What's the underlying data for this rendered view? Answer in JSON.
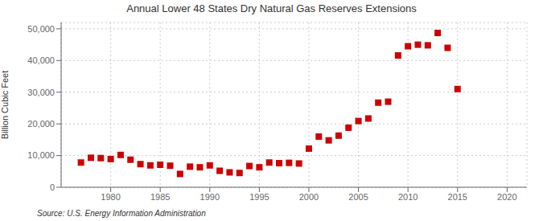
{
  "chart_data": {
    "type": "scatter",
    "title": "Annual Lower 48 States Dry Natural Gas Reserves Extensions",
    "ylabel": "Billion Cubic Feet",
    "annotations": [
      "Source: U.S. Energy Information Administration"
    ],
    "x": [
      1977,
      1978,
      1979,
      1980,
      1981,
      1982,
      1983,
      1984,
      1985,
      1986,
      1987,
      1988,
      1989,
      1990,
      1991,
      1992,
      1993,
      1994,
      1995,
      1996,
      1997,
      1998,
      1999,
      2000,
      2001,
      2002,
      2003,
      2004,
      2005,
      2006,
      2007,
      2008,
      2009,
      2010,
      2011,
      2012,
      2013,
      2014,
      2015
    ],
    "values": [
      7800,
      9300,
      9200,
      8900,
      10200,
      8700,
      7300,
      6900,
      7100,
      6800,
      4200,
      6500,
      6300,
      6900,
      5200,
      4700,
      4500,
      6700,
      6300,
      7800,
      7600,
      7700,
      7500,
      12200,
      16000,
      14800,
      16300,
      18800,
      20900,
      21700,
      26700,
      27000,
      41600,
      44500,
      45000,
      44800,
      48700,
      44000,
      31000
    ],
    "color": "#cc0000",
    "marker": "square",
    "grid": true,
    "xlim": [
      1975,
      2022
    ],
    "xticks": [
      1980,
      1985,
      1990,
      1995,
      2000,
      2005,
      2010,
      2015,
      2020
    ],
    "ylim": [
      0,
      52000
    ],
    "yticks": [
      0,
      {
        "value": 10000,
        "label": "10,000"
      },
      {
        "value": 20000,
        "label": "20,000"
      },
      {
        "value": 30000,
        "label": "30,000"
      },
      {
        "value": 40000,
        "label": "40,000"
      },
      {
        "value": 50000,
        "label": "50,000"
      }
    ]
  }
}
